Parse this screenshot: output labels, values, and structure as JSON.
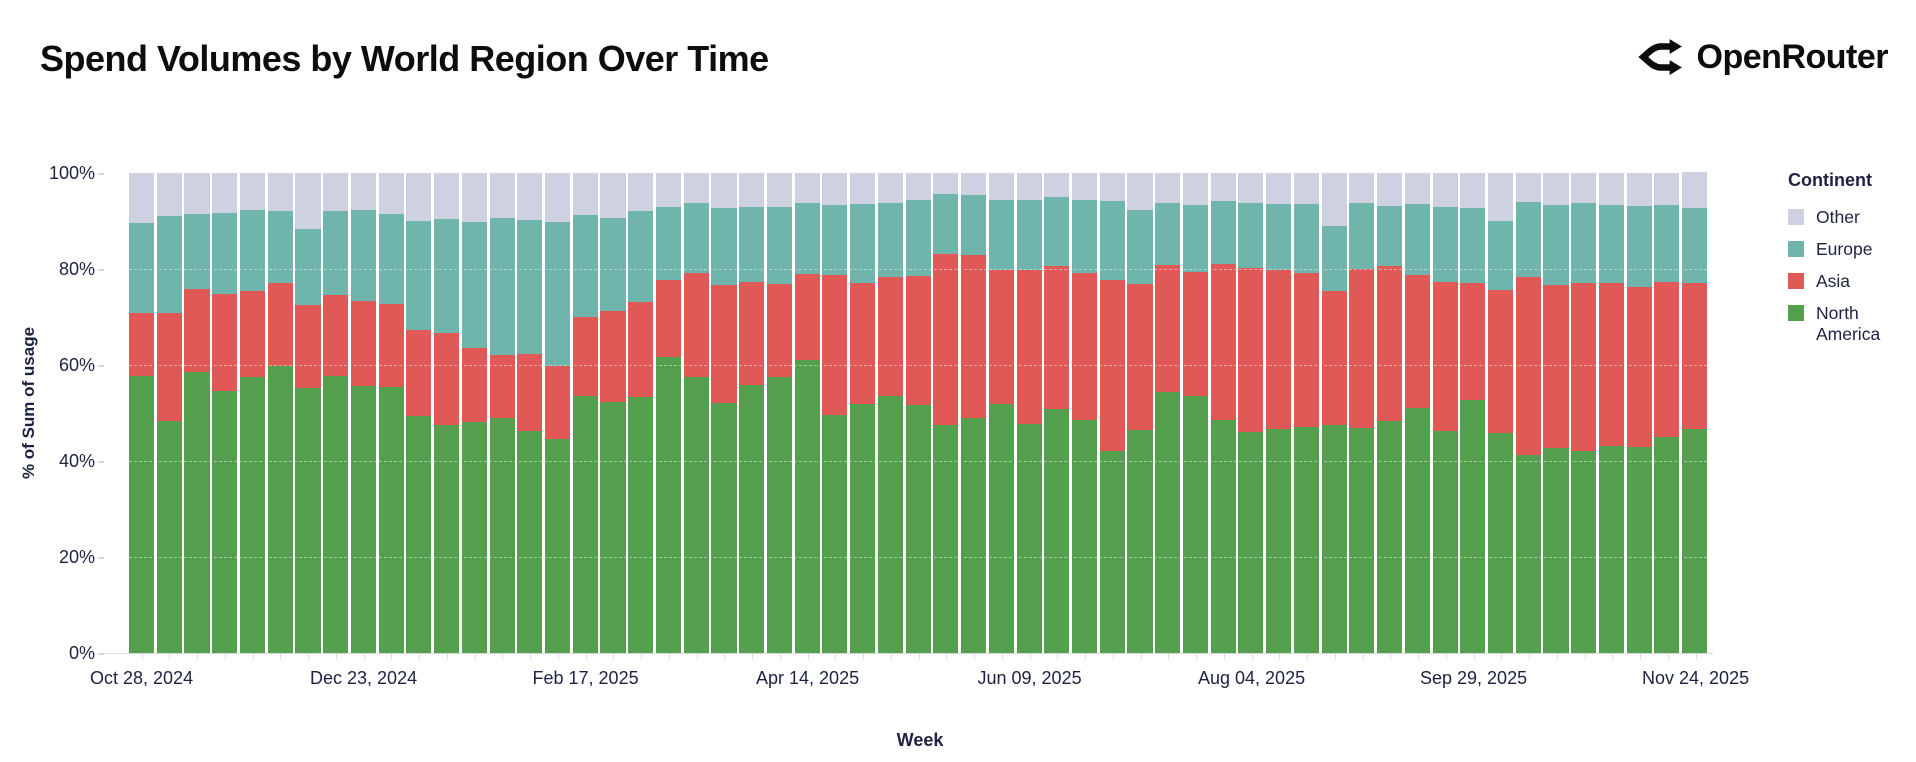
{
  "page": {
    "title": "Spend Volumes by World Region Over Time",
    "brand": "OpenRouter"
  },
  "y_axis": {
    "title": "% of Sum of usage",
    "ticks": [
      "0%",
      "20%",
      "40%",
      "60%",
      "80%",
      "100%"
    ]
  },
  "x_axis": {
    "title": "Week"
  },
  "legend": {
    "title": "Continent",
    "items": [
      {
        "label": "Other",
        "color": "#cdd1e0"
      },
      {
        "label": "Europe",
        "color": "#6fb5ac"
      },
      {
        "label": "Asia",
        "color": "#e15956"
      },
      {
        "label": "North America",
        "color": "#539f4e"
      }
    ]
  },
  "chart_data": {
    "type": "bar",
    "stacked": true,
    "normalized_percent": true,
    "title": "Spend Volumes by World Region Over Time",
    "xlabel": "Week",
    "ylabel": "% of Sum of usage",
    "ylim": [
      0,
      100
    ],
    "grid": "faint white horizontal lines at 20/40/60/80%",
    "legend_position": "right",
    "series_order": [
      "North America",
      "Asia",
      "Europe",
      "Other"
    ],
    "series_colors": {
      "North America": "#539f4e",
      "Asia": "#e15956",
      "Europe": "#6fb5ac",
      "Other": "#cdd1e0"
    },
    "x_tick_labels": [
      "Oct 28, 2024",
      "Dec 23, 2024",
      "Feb 17, 2025",
      "Apr 14, 2025",
      "Jun 09, 2025",
      "Aug 04, 2025",
      "Sep 29, 2025",
      "Nov 24, 2025"
    ],
    "x_tick_indices": [
      0,
      8,
      16,
      24,
      32,
      40,
      48,
      56
    ],
    "weeks_note": "57 weekly bars; each row = [North America, Asia, Europe, Other] in % of sum of usage",
    "weeks": [
      [
        57.7,
        13.1,
        18.7,
        10.5
      ],
      [
        48.3,
        22.5,
        20.2,
        9.0
      ],
      [
        58.5,
        17.4,
        15.6,
        8.5
      ],
      [
        54.5,
        20.3,
        16.8,
        8.4
      ],
      [
        57.4,
        18.1,
        16.7,
        7.8
      ],
      [
        59.8,
        17.3,
        14.9,
        8.0
      ],
      [
        55.3,
        17.3,
        15.8,
        11.6
      ],
      [
        57.7,
        16.8,
        17.5,
        8.0
      ],
      [
        55.7,
        17.7,
        18.8,
        7.8
      ],
      [
        55.5,
        17.3,
        18.6,
        8.6
      ],
      [
        49.4,
        18.0,
        22.7,
        9.9
      ],
      [
        47.5,
        19.1,
        23.9,
        9.5
      ],
      [
        48.1,
        15.5,
        26.1,
        10.3
      ],
      [
        48.9,
        13.1,
        28.6,
        9.4
      ],
      [
        46.3,
        16.1,
        27.9,
        9.7
      ],
      [
        44.5,
        15.4,
        29.9,
        10.2
      ],
      [
        53.6,
        16.4,
        21.3,
        8.7
      ],
      [
        52.3,
        18.9,
        19.5,
        9.3
      ],
      [
        53.4,
        19.8,
        18.8,
        8.0
      ],
      [
        61.7,
        16.0,
        15.2,
        7.1
      ],
      [
        57.6,
        21.5,
        14.6,
        6.3
      ],
      [
        52.1,
        24.6,
        16.1,
        7.2
      ],
      [
        55.8,
        21.4,
        15.7,
        7.1
      ],
      [
        57.4,
        19.4,
        16.1,
        7.1
      ],
      [
        61.0,
        18.0,
        14.7,
        6.3
      ],
      [
        49.6,
        29.2,
        14.6,
        6.6
      ],
      [
        51.9,
        25.1,
        16.5,
        6.5
      ],
      [
        53.6,
        24.8,
        15.3,
        6.3
      ],
      [
        51.7,
        26.9,
        15.7,
        5.7
      ],
      [
        47.5,
        35.6,
        12.6,
        4.3
      ],
      [
        48.9,
        34.0,
        12.5,
        4.6
      ],
      [
        51.9,
        28.0,
        14.5,
        5.6
      ],
      [
        47.7,
        32.2,
        14.4,
        5.7
      ],
      [
        50.8,
        29.8,
        14.4,
        5.0
      ],
      [
        48.6,
        30.6,
        15.1,
        5.7
      ],
      [
        42.0,
        35.7,
        16.4,
        5.9
      ],
      [
        46.5,
        30.4,
        15.4,
        7.7
      ],
      [
        54.3,
        26.5,
        12.9,
        6.3
      ],
      [
        53.6,
        25.8,
        14.0,
        6.6
      ],
      [
        48.6,
        32.4,
        13.1,
        5.9
      ],
      [
        46.0,
        34.3,
        13.4,
        6.3
      ],
      [
        46.7,
        33.0,
        13.9,
        6.4
      ],
      [
        47.0,
        32.2,
        14.4,
        6.4
      ],
      [
        47.5,
        28.0,
        13.4,
        11.1
      ],
      [
        46.8,
        33.3,
        13.6,
        6.3
      ],
      [
        48.4,
        32.2,
        12.6,
        6.8
      ],
      [
        51.0,
        27.8,
        14.7,
        6.5
      ],
      [
        46.3,
        30.9,
        15.8,
        7.0
      ],
      [
        52.7,
        24.3,
        15.7,
        7.3
      ],
      [
        45.8,
        29.8,
        14.4,
        10.0
      ],
      [
        41.3,
        37.1,
        15.5,
        6.1
      ],
      [
        42.7,
        34.0,
        16.7,
        6.6
      ],
      [
        42.0,
        35.0,
        16.7,
        6.3
      ],
      [
        43.2,
        33.8,
        16.4,
        6.6
      ],
      [
        43.0,
        33.3,
        16.9,
        6.8
      ],
      [
        45.1,
        32.3,
        16.0,
        6.6
      ],
      [
        46.7,
        30.3,
        15.8,
        7.5
      ]
    ]
  }
}
